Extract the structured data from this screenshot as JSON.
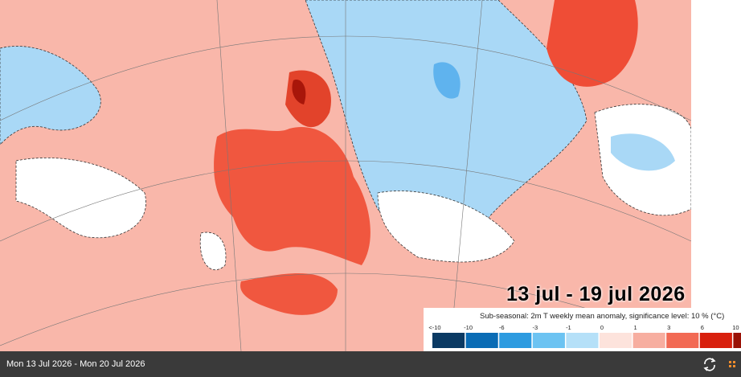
{
  "title": "13 jul - 19 jul 2026",
  "legend": {
    "caption": "Sub-seasonal: 2m T weekly mean anomaly, significance level: 10 % (°C)",
    "labels": [
      "<-10",
      "-10",
      "-6",
      "-3",
      "-1",
      "0",
      "1",
      "3",
      "6",
      "10"
    ],
    "colors": [
      "#0b3a63",
      "#0a6cb5",
      "#2d9be0",
      "#6cc3f2",
      "#b5e0f8",
      "#fde3dc",
      "#f7aea0",
      "#f26a54",
      "#d8200d",
      "#9a1206"
    ]
  },
  "footer": {
    "date_range": "Mon 13 Jul 2026 - Mon 20 Jul 2026"
  }
}
